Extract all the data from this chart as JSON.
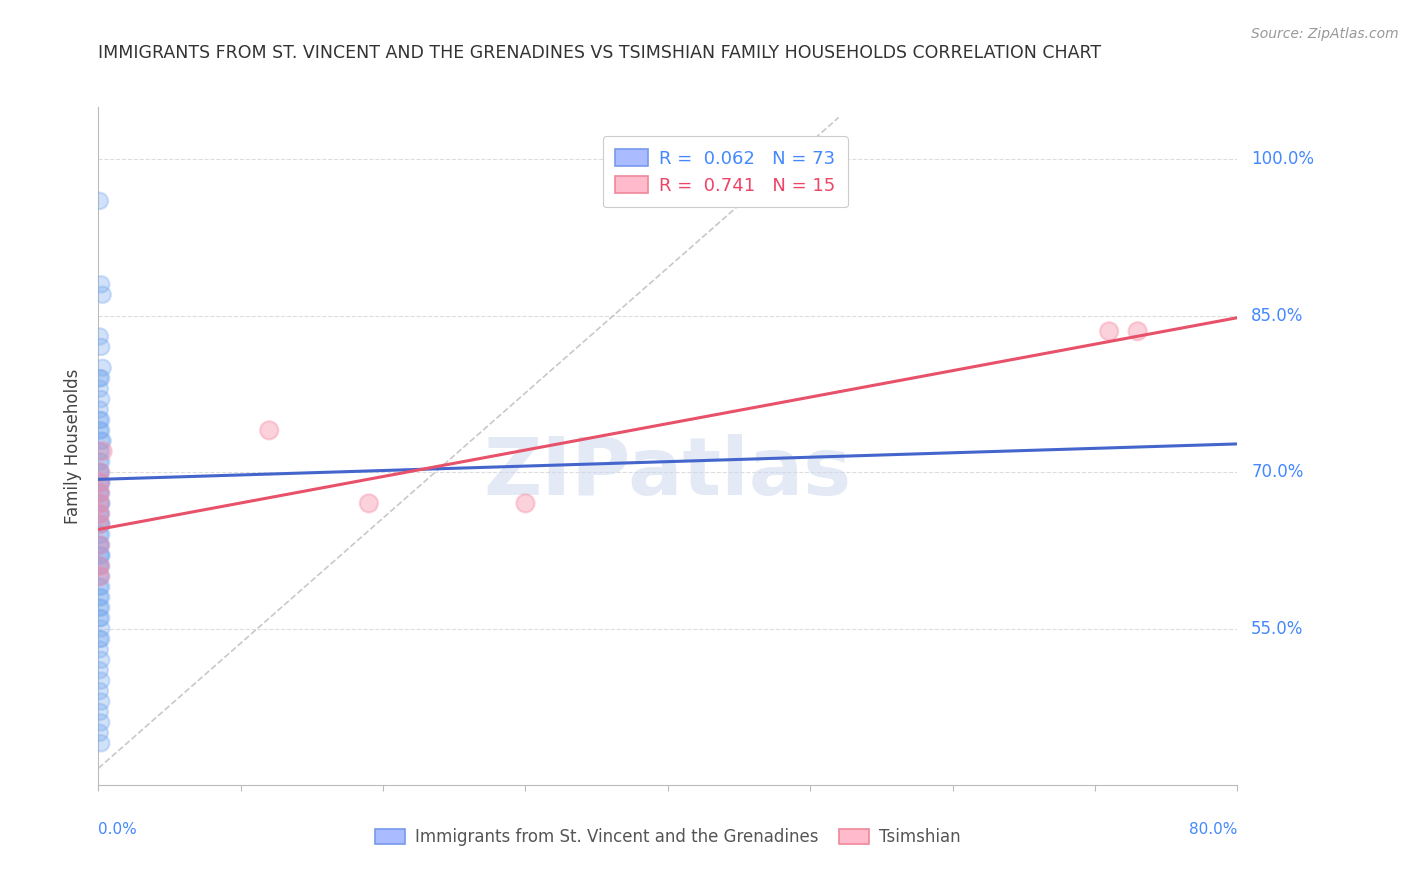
{
  "title": "IMMIGRANTS FROM ST. VINCENT AND THE GRENADINES VS TSIMSHIAN FAMILY HOUSEHOLDS CORRELATION CHART",
  "source": "Source: ZipAtlas.com",
  "ylabel": "Family Households",
  "ytick_labels": [
    "100.0%",
    "85.0%",
    "70.0%",
    "55.0%"
  ],
  "ytick_values": [
    1.0,
    0.85,
    0.7,
    0.55
  ],
  "xlim": [
    0.0,
    0.8
  ],
  "ylim": [
    0.4,
    1.05
  ],
  "watermark": "ZIPatlas",
  "blue_scatter_x": [
    0.001,
    0.002,
    0.003,
    0.001,
    0.002,
    0.003,
    0.001,
    0.002,
    0.001,
    0.002,
    0.001,
    0.002,
    0.001,
    0.002,
    0.001,
    0.002,
    0.003,
    0.001,
    0.002,
    0.001,
    0.002,
    0.001,
    0.002,
    0.001,
    0.002,
    0.001,
    0.002,
    0.001,
    0.002,
    0.001,
    0.002,
    0.001,
    0.002,
    0.001,
    0.002,
    0.001,
    0.002,
    0.001,
    0.002,
    0.001,
    0.002,
    0.001,
    0.002,
    0.001,
    0.002,
    0.001,
    0.002,
    0.001,
    0.002,
    0.001,
    0.002,
    0.001,
    0.002,
    0.001,
    0.002,
    0.001,
    0.002,
    0.001,
    0.002,
    0.001,
    0.002,
    0.001,
    0.002,
    0.001,
    0.002,
    0.001,
    0.002,
    0.001,
    0.002,
    0.001,
    0.002,
    0.001,
    0.002
  ],
  "blue_scatter_y": [
    0.96,
    0.88,
    0.87,
    0.83,
    0.82,
    0.8,
    0.79,
    0.79,
    0.78,
    0.77,
    0.76,
    0.75,
    0.75,
    0.74,
    0.74,
    0.73,
    0.73,
    0.72,
    0.72,
    0.71,
    0.71,
    0.7,
    0.7,
    0.7,
    0.69,
    0.69,
    0.69,
    0.68,
    0.68,
    0.68,
    0.67,
    0.67,
    0.67,
    0.66,
    0.66,
    0.66,
    0.65,
    0.65,
    0.65,
    0.64,
    0.64,
    0.63,
    0.63,
    0.63,
    0.62,
    0.62,
    0.62,
    0.61,
    0.61,
    0.61,
    0.6,
    0.6,
    0.59,
    0.59,
    0.58,
    0.58,
    0.57,
    0.57,
    0.56,
    0.56,
    0.55,
    0.54,
    0.54,
    0.53,
    0.52,
    0.51,
    0.5,
    0.49,
    0.48,
    0.47,
    0.46,
    0.45,
    0.44
  ],
  "pink_scatter_x": [
    0.001,
    0.003,
    0.001,
    0.12,
    0.19,
    0.001,
    0.001,
    0.001,
    0.3,
    0.71,
    0.73,
    0.001,
    0.001,
    0.001,
    0.001
  ],
  "pink_scatter_y": [
    0.7,
    0.72,
    0.69,
    0.74,
    0.67,
    0.68,
    0.65,
    0.63,
    0.67,
    0.835,
    0.835,
    0.67,
    0.66,
    0.61,
    0.6
  ],
  "blue_line_x": [
    0.0,
    0.8
  ],
  "blue_line_y": [
    0.693,
    0.727
  ],
  "pink_line_x": [
    0.0,
    0.8
  ],
  "pink_line_y": [
    0.645,
    0.848
  ],
  "diag_line_x": [
    0.0,
    0.52
  ],
  "diag_line_y": [
    0.416,
    1.04
  ],
  "blue_color": "#7aabee",
  "pink_color": "#f78da7",
  "blue_line_color": "#4466cc",
  "pink_line_color": "#e8516a",
  "diag_line_color": "#bbbbbb",
  "grid_color": "#dddddd",
  "title_color": "#333333",
  "axis_label_color": "#4488ff",
  "background_color": "#ffffff",
  "legend_blue_label_r": "R = ",
  "legend_blue_r_val": "0.062",
  "legend_blue_n": "N = 73",
  "legend_pink_label_r": "R = ",
  "legend_pink_r_val": "0.741",
  "legend_pink_n": "N = 15"
}
